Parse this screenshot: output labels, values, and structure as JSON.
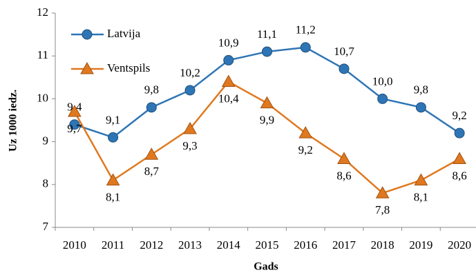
{
  "chart_data": {
    "type": "line",
    "x_label": "Gads",
    "y_label": "Uz 1000 iedz.",
    "categories": [
      "2010",
      "2011",
      "2012",
      "2013",
      "2014",
      "2015",
      "2016",
      "2017",
      "2018",
      "2019",
      "2020"
    ],
    "series": [
      {
        "name": "Latvija",
        "color": "#2e75b6",
        "marker": "circle",
        "values": [
          9.4,
          9.1,
          9.8,
          10.2,
          10.9,
          11.1,
          11.2,
          10.7,
          10.0,
          9.8,
          9.2
        ],
        "value_labels": [
          "9,4",
          "9,1",
          "9,8",
          "10,2",
          "10,9",
          "11,1",
          "11,2",
          "10,7",
          "10,0",
          "9,8",
          "9,2"
        ]
      },
      {
        "name": "Ventspils",
        "color": "#e0781f",
        "marker": "triangle",
        "values": [
          9.7,
          8.1,
          8.7,
          9.3,
          10.4,
          9.9,
          9.2,
          8.6,
          7.8,
          8.1,
          8.6
        ],
        "value_labels": [
          "9,7",
          "8,1",
          "8,7",
          "9,3",
          "10,4",
          "9,9",
          "9,2",
          "8,6",
          "7,8",
          "8,1",
          "8,6"
        ]
      }
    ],
    "ylim": [
      7,
      12
    ],
    "yticks": [
      7,
      8,
      9,
      10,
      11,
      12
    ],
    "grid": false,
    "legend": "upper left"
  }
}
